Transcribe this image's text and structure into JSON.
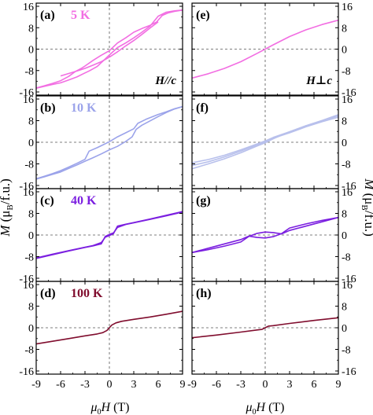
{
  "figure": {
    "ylabel_left": {
      "base": "M",
      "unit_open": " (μ",
      "unit_sub": "B",
      "unit_close": "/f.u.)"
    },
    "ylabel_right": {
      "base": "M",
      "unit_open": " (μ",
      "unit_sub": "B",
      "unit_close": "/f.u.)"
    },
    "xlabel": {
      "base": "μ",
      "sub": "0",
      "rest": "H",
      "unit": " (T)"
    },
    "xticks": [
      "-9",
      "-6",
      "-3",
      "0",
      "3",
      "6",
      "9"
    ],
    "yticks": [
      "-16",
      "-8",
      "0",
      "8",
      "16"
    ]
  },
  "chart_data": [
    {
      "type": "line",
      "panel": "(a)",
      "temperature": "5 K",
      "annotation": "H//c",
      "color": "#f26ee2",
      "xlim": [
        -9,
        9
      ],
      "ylim": [
        -16,
        16
      ],
      "series": [
        {
          "x": [
            -9,
            -8,
            -7,
            -6,
            -5,
            -4.2,
            -3.4,
            -3,
            -2,
            -1,
            0,
            1,
            2,
            3,
            4,
            5,
            5.8,
            6.5,
            7.2,
            8,
            9
          ],
          "y": [
            -14.5,
            -13.7,
            -12.8,
            -11.8,
            -10.2,
            -8.4,
            -7.1,
            -6.3,
            -4.2,
            -2.3,
            -0.6,
            2.3,
            4.2,
            6.3,
            7.7,
            8.9,
            10.1,
            12.6,
            13.5,
            14.1,
            14.6
          ]
        },
        {
          "x": [
            -9,
            -8,
            -7,
            -6,
            -5,
            -4,
            -3.2,
            -2.4,
            -1.5,
            0,
            1,
            2,
            3,
            4,
            5,
            6,
            7,
            8,
            9
          ],
          "y": [
            -14.6,
            -13.9,
            -13.2,
            -12.6,
            -11.5,
            -10.4,
            -9.2,
            -8.0,
            -6.5,
            -2.2,
            0.6,
            2.3,
            4.2,
            6.3,
            8.6,
            12.3,
            13.8,
            14.3,
            14.6
          ]
        },
        {
          "x": [
            -6,
            -5,
            -4,
            -3,
            -2,
            -1,
            0,
            1,
            2,
            3,
            4,
            5,
            6
          ],
          "y": [
            -10.0,
            -9.1,
            -8.2,
            -7.2,
            -6.0,
            -4.7,
            -3.0,
            -1.0,
            1.2,
            3.2,
            5.5,
            7.9,
            10.2
          ]
        }
      ]
    },
    {
      "type": "line",
      "panel": "(b)",
      "temperature": "10 K",
      "color": "#9ba3ea",
      "xlim": [
        -9,
        9
      ],
      "ylim": [
        -16,
        16
      ],
      "series": [
        {
          "x": [
            -9,
            -8,
            -7,
            -6,
            -5,
            -4,
            -3,
            -2.5,
            -1.5,
            0,
            1,
            2,
            3,
            3.5,
            4.5,
            6,
            7,
            8,
            9
          ],
          "y": [
            -13.5,
            -12.6,
            -11.6,
            -10.5,
            -9.2,
            -7.8,
            -6.3,
            -3.3,
            -2.0,
            0.2,
            2.0,
            3.5,
            5.0,
            7.0,
            8.5,
            10.3,
            11.3,
            12.4,
            13.2
          ]
        },
        {
          "x": [
            -9,
            -8,
            -7,
            -6,
            -5,
            -4,
            -3,
            -2,
            -1,
            0,
            1,
            2,
            2.8,
            3.3,
            4,
            5,
            6,
            7,
            8,
            9
          ],
          "y": [
            -13.6,
            -12.8,
            -11.9,
            -11.0,
            -9.7,
            -8.4,
            -7.0,
            -5.7,
            -4.3,
            -2.8,
            -1.5,
            0.3,
            2.0,
            4.8,
            6.3,
            7.9,
            9.5,
            11.0,
            12.3,
            13.2
          ]
        }
      ]
    },
    {
      "type": "line",
      "panel": "(c)",
      "temperature": "40 K",
      "color": "#7b1fe0",
      "xlim": [
        -9,
        9
      ],
      "ylim": [
        -16,
        16
      ],
      "series": [
        {
          "x": [
            -9,
            -7,
            -5,
            -3,
            -2,
            -1,
            -0.5,
            0,
            0.5,
            1,
            2,
            3,
            5,
            7,
            9
          ],
          "y": [
            -8.5,
            -7.1,
            -5.8,
            -4.5,
            -3.9,
            -2.8,
            -0.8,
            -0.2,
            0.5,
            3.3,
            4.0,
            4.6,
            5.9,
            7.3,
            8.7
          ]
        },
        {
          "x": [
            -9,
            -7,
            -5,
            -3,
            -2,
            -1,
            -0.5,
            0,
            0.5,
            1,
            2,
            3,
            5,
            7,
            9
          ],
          "y": [
            -8.7,
            -7.3,
            -5.9,
            -4.6,
            -4.0,
            -3.3,
            -0.5,
            0.2,
            0.8,
            2.8,
            3.9,
            4.5,
            5.8,
            7.1,
            8.5
          ]
        }
      ]
    },
    {
      "type": "line",
      "panel": "(d)",
      "temperature": "100 K",
      "color": "#800d2e",
      "xlim": [
        -9,
        9
      ],
      "ylim": [
        -16,
        16
      ],
      "series": [
        {
          "x": [
            -9,
            -7,
            -5,
            -3,
            -1.5,
            -0.8,
            -0.3,
            0,
            0.3,
            0.8,
            1.5,
            3,
            5,
            7,
            9
          ],
          "y": [
            -6.0,
            -5.0,
            -4.0,
            -3.0,
            -2.3,
            -1.8,
            -1.0,
            0,
            1.0,
            1.8,
            2.4,
            3.1,
            4.0,
            5.0,
            6.1
          ]
        }
      ]
    },
    {
      "type": "line",
      "panel": "(e)",
      "annotation": "H⊥c",
      "color": "#f26ee2",
      "xlim": [
        -9,
        9
      ],
      "ylim": [
        -16,
        16
      ],
      "series": [
        {
          "x": [
            -9,
            -7,
            -5,
            -3,
            -1,
            0,
            1,
            3,
            5,
            7,
            9
          ],
          "y": [
            -10.8,
            -9.2,
            -7.2,
            -4.7,
            -1.6,
            0,
            1.6,
            4.7,
            7.2,
            9.2,
            10.8
          ]
        }
      ]
    },
    {
      "type": "line",
      "panel": "(f)",
      "color": "#b8c0ec",
      "xlim": [
        -9,
        9
      ],
      "ylim": [
        -16,
        16
      ],
      "series": [
        {
          "x": [
            -9,
            -7,
            -5,
            -3,
            -1,
            0,
            1,
            3,
            5,
            7,
            9
          ],
          "y": [
            -9.8,
            -8.0,
            -6.1,
            -3.9,
            -1.4,
            -0.2,
            1.3,
            3.9,
            6.1,
            8.0,
            9.8
          ]
        },
        {
          "x": [
            -9,
            -7,
            -5,
            -3,
            -1,
            0,
            1,
            3,
            5,
            7,
            9
          ],
          "y": [
            -8.6,
            -7.2,
            -5.4,
            -3.3,
            -1.0,
            0.2,
            1.5,
            3.5,
            5.7,
            7.6,
            9.3
          ]
        },
        {
          "x": [
            -9,
            -7,
            -5,
            -3,
            -1,
            0,
            1,
            3,
            5,
            7,
            9
          ],
          "y": [
            -7.6,
            -6.4,
            -4.8,
            -2.8,
            -0.6,
            0.5,
            1.8,
            3.9,
            6.1,
            8.1,
            10.2
          ]
        }
      ]
    },
    {
      "type": "line",
      "panel": "(g)",
      "color": "#7b1fe0",
      "xlim": [
        -9,
        9
      ],
      "ylim": [
        -16,
        16
      ],
      "series": [
        {
          "x": [
            -9,
            -7,
            -5,
            -3,
            -2,
            -1,
            0,
            1,
            2,
            3,
            5,
            7,
            9
          ],
          "y": [
            -6.5,
            -5.4,
            -4.1,
            -2.6,
            -0.5,
            0.6,
            1.1,
            0.9,
            0.4,
            1.7,
            3.3,
            4.9,
            6.5
          ]
        },
        {
          "x": [
            -9,
            -7,
            -5,
            -3,
            -2,
            -1,
            0,
            1,
            2,
            3,
            5,
            7,
            9
          ],
          "y": [
            -6.5,
            -4.9,
            -3.3,
            -1.7,
            -0.4,
            -0.9,
            -1.1,
            -0.6,
            0.5,
            2.6,
            4.1,
            5.4,
            6.5
          ]
        }
      ]
    },
    {
      "type": "line",
      "panel": "(h)",
      "color": "#800d2e",
      "xlim": [
        -9,
        9
      ],
      "ylim": [
        -16,
        16
      ],
      "series": [
        {
          "x": [
            -9,
            -6,
            -3,
            -1,
            -0.4,
            0,
            0.4,
            1,
            3,
            6,
            9
          ],
          "y": [
            -3.7,
            -2.7,
            -1.6,
            -0.8,
            -0.6,
            0,
            0.6,
            0.8,
            1.6,
            2.7,
            3.7
          ]
        }
      ]
    }
  ]
}
